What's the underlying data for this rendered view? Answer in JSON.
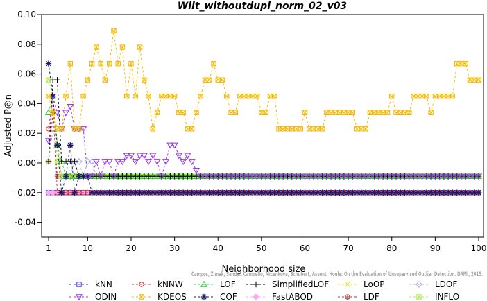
{
  "chart_data": {
    "type": "line",
    "title": "Wilt_withoutdupl_norm_02_v03",
    "xlabel": "Neighborhood size",
    "ylabel": "Adjusted P@n",
    "xlim": [
      0,
      100
    ],
    "ylim": [
      -0.05,
      0.1
    ],
    "xticks": [
      1,
      10,
      20,
      30,
      40,
      50,
      60,
      70,
      80,
      90,
      100
    ],
    "yticks": [
      -0.04,
      -0.02,
      0.0,
      0.02,
      0.04,
      0.06,
      0.08,
      0.1
    ],
    "ytick_labels": [
      "-0.04",
      "-0.02",
      "0.00",
      "0.02",
      "0.04",
      "0.06",
      "0.08",
      "0.10"
    ],
    "grid": false,
    "legend_position": "bottom",
    "watermark": "Campos, Zimek, Sander, Campello, Micenkova, Schubert, Assent, Houle: On the Evaluation of Unsupervised Outlier Detection. DAMI, 2015.",
    "series": [
      {
        "name": "kNN",
        "color": "#3333dd",
        "marker": "square",
        "points": [
          [
            1,
            -0.02
          ],
          [
            100,
            -0.02
          ]
        ]
      },
      {
        "name": "kNNW",
        "color": "#dd3333",
        "marker": "circle",
        "points": [
          [
            1,
            0.023
          ],
          [
            2,
            0.045
          ],
          [
            3,
            -0.02
          ],
          [
            100,
            -0.02
          ]
        ]
      },
      {
        "name": "LOF",
        "color": "#33cc33",
        "marker": "triangle",
        "points": [
          [
            1,
            0.034
          ],
          [
            2,
            0.045
          ],
          [
            3,
            0.012
          ],
          [
            4,
            0.001
          ],
          [
            5,
            -0.009
          ],
          [
            100,
            -0.009
          ]
        ]
      },
      {
        "name": "SimplifiedLOF",
        "color": "#000000",
        "marker": "plus",
        "points": [
          [
            1,
            0.001
          ],
          [
            2,
            0.056
          ],
          [
            3,
            0.056
          ],
          [
            4,
            0.001
          ],
          [
            5,
            0.001
          ],
          [
            6,
            0.001
          ],
          [
            7,
            0.001
          ],
          [
            8,
            -0.009
          ],
          [
            100,
            -0.009
          ]
        ]
      },
      {
        "name": "LoOP",
        "color": "#e8e81a",
        "marker": "x",
        "points": [
          [
            1,
            0.001
          ],
          [
            2,
            0.045
          ],
          [
            3,
            0.012
          ],
          [
            4,
            -0.009
          ],
          [
            100,
            -0.009
          ]
        ]
      },
      {
        "name": "LDOF",
        "color": "#aaaaee",
        "marker": "diamond",
        "points": [
          [
            1,
            0.001
          ],
          [
            2,
            0.023
          ],
          [
            3,
            0.012
          ],
          [
            4,
            -0.009
          ],
          [
            5,
            -0.009
          ],
          [
            6,
            -0.009
          ],
          [
            7,
            0.001
          ],
          [
            8,
            0.001
          ],
          [
            9,
            -0.009
          ],
          [
            10,
            0.001
          ],
          [
            11,
            0.001
          ],
          [
            12,
            -0.009
          ],
          [
            100,
            -0.009
          ]
        ]
      },
      {
        "name": "ODIN",
        "color": "#9933ee",
        "marker": "triangle-down",
        "points": [
          [
            1,
            0.015
          ],
          [
            2,
            0.045
          ],
          [
            3,
            0.034
          ],
          [
            4,
            0.023
          ],
          [
            5,
            0.034
          ],
          [
            6,
            0.038
          ],
          [
            7,
            0.023
          ],
          [
            8,
            0.023
          ],
          [
            9,
            0.023
          ],
          [
            10,
            -0.009
          ],
          [
            11,
            -0.009
          ],
          [
            12,
            0.001
          ],
          [
            13,
            -0.009
          ],
          [
            14,
            0.001
          ],
          [
            15,
            0.001
          ],
          [
            16,
            -0.009
          ],
          [
            17,
            0.001
          ],
          [
            18,
            0.001
          ],
          [
            19,
            0.005
          ],
          [
            20,
            0.005
          ],
          [
            21,
            0.001
          ],
          [
            22,
            0.005
          ],
          [
            23,
            0.005
          ],
          [
            24,
            0.001
          ],
          [
            25,
            0.005
          ],
          [
            26,
            0.001
          ],
          [
            27,
            -0.009
          ],
          [
            28,
            0.001
          ],
          [
            29,
            0.012
          ],
          [
            30,
            0.012
          ],
          [
            31,
            0.005
          ],
          [
            32,
            0.001
          ],
          [
            33,
            0.005
          ],
          [
            34,
            0.001
          ],
          [
            35,
            -0.005
          ],
          [
            36,
            -0.009
          ],
          [
            100,
            -0.009
          ]
        ]
      },
      {
        "name": "KDEOS",
        "color": "#f5b800",
        "marker": "boxed-x",
        "points": [
          [
            1,
            0.045
          ],
          [
            2,
            0.034
          ],
          [
            3,
            0.023
          ],
          [
            4,
            0.023
          ],
          [
            5,
            0.045
          ],
          [
            6,
            0.067
          ],
          [
            7,
            0.023
          ],
          [
            8,
            0.023
          ],
          [
            9,
            0.045
          ],
          [
            10,
            0.056
          ],
          [
            11,
            0.067
          ],
          [
            12,
            0.078
          ],
          [
            13,
            0.067
          ],
          [
            14,
            0.056
          ],
          [
            15,
            0.067
          ],
          [
            16,
            0.089
          ],
          [
            17,
            0.067
          ],
          [
            18,
            0.078
          ],
          [
            19,
            0.045
          ],
          [
            20,
            0.067
          ],
          [
            21,
            0.045
          ],
          [
            22,
            0.078
          ],
          [
            23,
            0.056
          ],
          [
            24,
            0.045
          ],
          [
            25,
            0.023
          ],
          [
            26,
            0.034
          ],
          [
            27,
            0.045
          ],
          [
            28,
            0.045
          ],
          [
            29,
            0.045
          ],
          [
            30,
            0.045
          ],
          [
            31,
            0.034
          ],
          [
            32,
            0.034
          ],
          [
            33,
            0.023
          ],
          [
            34,
            0.023
          ],
          [
            35,
            0.034
          ],
          [
            36,
            0.045
          ],
          [
            37,
            0.056
          ],
          [
            38,
            0.056
          ],
          [
            39,
            0.067
          ],
          [
            40,
            0.056
          ],
          [
            41,
            0.056
          ],
          [
            42,
            0.045
          ],
          [
            43,
            0.034
          ],
          [
            44,
            0.034
          ],
          [
            45,
            0.045
          ],
          [
            46,
            0.045
          ],
          [
            47,
            0.045
          ],
          [
            48,
            0.045
          ],
          [
            49,
            0.045
          ],
          [
            50,
            0.034
          ],
          [
            51,
            0.034
          ],
          [
            52,
            0.045
          ],
          [
            53,
            0.045
          ],
          [
            54,
            0.023
          ],
          [
            55,
            0.023
          ],
          [
            56,
            0.023
          ],
          [
            57,
            0.023
          ],
          [
            58,
            0.023
          ],
          [
            59,
            0.023
          ],
          [
            60,
            0.034
          ],
          [
            61,
            0.023
          ],
          [
            62,
            0.023
          ],
          [
            63,
            0.023
          ],
          [
            64,
            0.023
          ],
          [
            65,
            0.034
          ],
          [
            66,
            0.034
          ],
          [
            67,
            0.034
          ],
          [
            68,
            0.034
          ],
          [
            69,
            0.034
          ],
          [
            70,
            0.034
          ],
          [
            71,
            0.034
          ],
          [
            72,
            0.023
          ],
          [
            73,
            0.023
          ],
          [
            74,
            0.023
          ],
          [
            75,
            0.034
          ],
          [
            76,
            0.034
          ],
          [
            77,
            0.034
          ],
          [
            78,
            0.034
          ],
          [
            79,
            0.034
          ],
          [
            80,
            0.045
          ],
          [
            81,
            0.034
          ],
          [
            82,
            0.034
          ],
          [
            83,
            0.034
          ],
          [
            84,
            0.034
          ],
          [
            85,
            0.045
          ],
          [
            86,
            0.045
          ],
          [
            87,
            0.045
          ],
          [
            88,
            0.045
          ],
          [
            89,
            0.034
          ],
          [
            90,
            0.045
          ],
          [
            91,
            0.045
          ],
          [
            92,
            0.045
          ],
          [
            93,
            0.045
          ],
          [
            94,
            0.045
          ],
          [
            95,
            0.067
          ],
          [
            96,
            0.067
          ],
          [
            97,
            0.067
          ],
          [
            98,
            0.056
          ],
          [
            99,
            0.056
          ],
          [
            100,
            0.056
          ]
        ]
      },
      {
        "name": "COF",
        "color": "#1a1a66",
        "marker": "star",
        "points": [
          [
            1,
            0.067
          ],
          [
            2,
            0.045
          ],
          [
            3,
            0.012
          ],
          [
            4,
            -0.02
          ],
          [
            5,
            -0.009
          ],
          [
            6,
            0.012
          ],
          [
            7,
            -0.02
          ],
          [
            8,
            -0.009
          ],
          [
            9,
            -0.009
          ],
          [
            10,
            -0.009
          ],
          [
            11,
            -0.02
          ],
          [
            100,
            -0.02
          ]
        ]
      },
      {
        "name": "FastABOD",
        "color": "#ffaaee",
        "marker": "diamond-filled",
        "points": [
          [
            1,
            -0.02
          ],
          [
            100,
            -0.02
          ]
        ]
      },
      {
        "name": "LDF",
        "color": "#aa3333",
        "marker": "circle-plus",
        "points": [
          [
            1,
            0.001
          ],
          [
            2,
            0.034
          ],
          [
            3,
            -0.009
          ],
          [
            100,
            -0.009
          ]
        ]
      },
      {
        "name": "INFLO",
        "color": "#aaee44",
        "marker": "boxed-x",
        "points": [
          [
            1,
            0.056
          ],
          [
            2,
            0.045
          ],
          [
            3,
            0.001
          ],
          [
            4,
            -0.009
          ],
          [
            100,
            -0.009
          ]
        ]
      }
    ]
  }
}
